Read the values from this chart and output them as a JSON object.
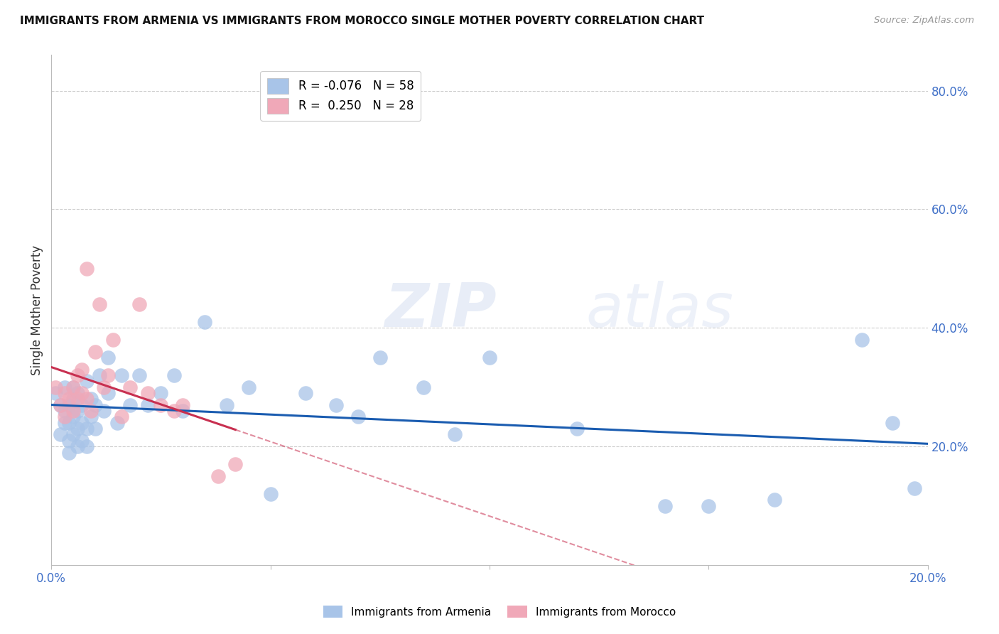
{
  "title": "IMMIGRANTS FROM ARMENIA VS IMMIGRANTS FROM MOROCCO SINGLE MOTHER POVERTY CORRELATION CHART",
  "source": "Source: ZipAtlas.com",
  "ylabel": "Single Mother Poverty",
  "armenia_R": -0.076,
  "armenia_N": 58,
  "morocco_R": 0.25,
  "morocco_N": 28,
  "armenia_color": "#a8c4e8",
  "morocco_color": "#f0a8b8",
  "armenia_line_color": "#1a5cb0",
  "morocco_line_color": "#c83050",
  "watermark": "ZIPatlas",
  "armenia_points_x": [
    0.001,
    0.002,
    0.002,
    0.003,
    0.003,
    0.003,
    0.004,
    0.004,
    0.004,
    0.004,
    0.005,
    0.005,
    0.005,
    0.005,
    0.006,
    0.006,
    0.006,
    0.006,
    0.007,
    0.007,
    0.007,
    0.008,
    0.008,
    0.008,
    0.009,
    0.009,
    0.01,
    0.01,
    0.011,
    0.012,
    0.013,
    0.013,
    0.015,
    0.016,
    0.018,
    0.02,
    0.022,
    0.025,
    0.028,
    0.03,
    0.035,
    0.04,
    0.045,
    0.05,
    0.058,
    0.065,
    0.07,
    0.075,
    0.085,
    0.092,
    0.1,
    0.12,
    0.14,
    0.15,
    0.165,
    0.185,
    0.192,
    0.197
  ],
  "armenia_points_y": [
    0.29,
    0.22,
    0.27,
    0.24,
    0.26,
    0.3,
    0.19,
    0.21,
    0.24,
    0.27,
    0.22,
    0.25,
    0.28,
    0.3,
    0.2,
    0.23,
    0.26,
    0.29,
    0.21,
    0.24,
    0.27,
    0.2,
    0.23,
    0.31,
    0.25,
    0.28,
    0.23,
    0.27,
    0.32,
    0.26,
    0.29,
    0.35,
    0.24,
    0.32,
    0.27,
    0.32,
    0.27,
    0.29,
    0.32,
    0.26,
    0.41,
    0.27,
    0.3,
    0.12,
    0.29,
    0.27,
    0.25,
    0.35,
    0.3,
    0.22,
    0.35,
    0.23,
    0.1,
    0.1,
    0.11,
    0.38,
    0.24,
    0.13
  ],
  "morocco_points_x": [
    0.001,
    0.002,
    0.003,
    0.003,
    0.004,
    0.005,
    0.005,
    0.006,
    0.006,
    0.007,
    0.007,
    0.008,
    0.008,
    0.009,
    0.01,
    0.011,
    0.012,
    0.013,
    0.014,
    0.016,
    0.018,
    0.02,
    0.022,
    0.025,
    0.028,
    0.03,
    0.038,
    0.042
  ],
  "morocco_points_y": [
    0.3,
    0.27,
    0.25,
    0.29,
    0.28,
    0.26,
    0.3,
    0.28,
    0.32,
    0.29,
    0.33,
    0.5,
    0.28,
    0.26,
    0.36,
    0.44,
    0.3,
    0.32,
    0.38,
    0.25,
    0.3,
    0.44,
    0.29,
    0.27,
    0.26,
    0.27,
    0.15,
    0.17
  ],
  "xlim": [
    0.0,
    0.2
  ],
  "ylim": [
    0.0,
    0.86
  ],
  "yticks": [
    0.2,
    0.4,
    0.6,
    0.8
  ],
  "ytick_labels": [
    "20.0%",
    "40.0%",
    "60.0%",
    "80.0%"
  ],
  "xticks": [
    0.0,
    0.05,
    0.1,
    0.15,
    0.2
  ],
  "xtick_labels": [
    "0.0%",
    "",
    "",
    "",
    "20.0%"
  ]
}
